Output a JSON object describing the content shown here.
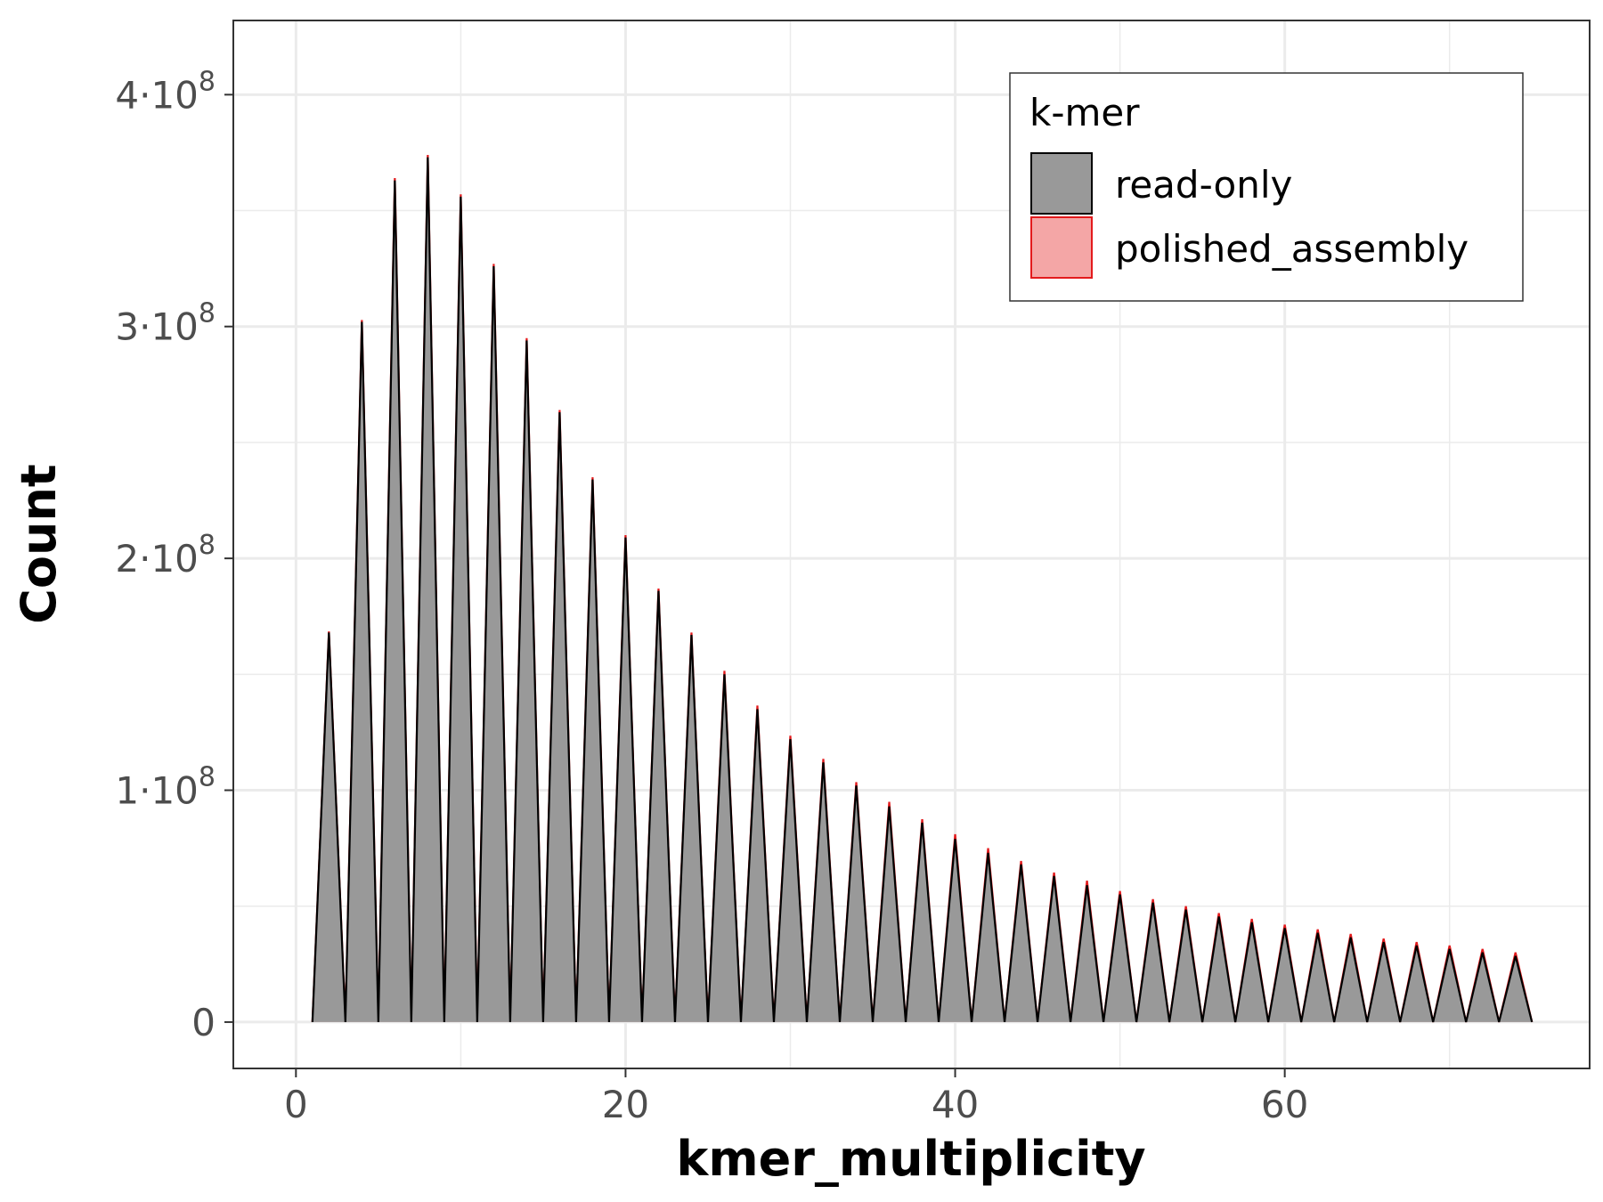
{
  "chart_data": {
    "type": "area",
    "title": "",
    "xlabel": "kmer_multiplicity",
    "ylabel": "Count",
    "xlim": [
      -3.8,
      78.5
    ],
    "ylim": [
      -20000000,
      432000000
    ],
    "x_ticks": [
      0,
      20,
      40,
      60
    ],
    "x_tick_labels": [
      "0",
      "20",
      "40",
      "60"
    ],
    "y_ticks": [
      0,
      100000000,
      200000000,
      300000000,
      400000000
    ],
    "y_tick_labels": [
      {
        "base": "0",
        "exp": ""
      },
      {
        "base": "1·10",
        "exp": "8"
      },
      {
        "base": "2·10",
        "exp": "8"
      },
      {
        "base": "3·10",
        "exp": "8"
      },
      {
        "base": "4·10",
        "exp": "8"
      }
    ],
    "grid": true,
    "legend": {
      "title": "k-mer",
      "position": "top-right",
      "entries": [
        {
          "name": "read-only",
          "fill": "#999999",
          "stroke": "#000000"
        },
        {
          "name": "polished_assembly",
          "fill": "#f4a6a6",
          "stroke": "#e31a1c"
        }
      ]
    },
    "x": [
      1,
      2,
      3,
      4,
      5,
      6,
      7,
      8,
      9,
      10,
      11,
      12,
      13,
      14,
      15,
      16,
      17,
      18,
      19,
      20,
      21,
      22,
      23,
      24,
      25,
      26,
      27,
      28,
      29,
      30,
      31,
      32,
      33,
      34,
      35,
      36,
      37,
      38,
      39,
      40,
      41,
      42,
      43,
      44,
      45,
      46,
      47,
      48,
      49,
      50,
      51,
      52,
      53,
      54,
      55,
      56,
      57,
      58,
      59,
      60,
      61,
      62,
      63,
      64,
      65,
      66,
      67,
      68,
      69,
      70,
      71,
      72,
      73,
      74,
      75
    ],
    "series": [
      {
        "name": "read-only",
        "color": "#000000",
        "fill": "#999999",
        "values": [
          0,
          168000000,
          0,
          302000000,
          0,
          363000000,
          0,
          373000000,
          0,
          356000000,
          0,
          326000000,
          0,
          294000000,
          0,
          263000000,
          0,
          234000000,
          0,
          209000000,
          0,
          186000000,
          0,
          167000000,
          0,
          150000000,
          0,
          135000000,
          0,
          122000000,
          0,
          112000000,
          0,
          102000000,
          0,
          93000000,
          0,
          86000000,
          0,
          79000000,
          0,
          73000000,
          0,
          68000000,
          0,
          63000000,
          0,
          59000000,
          0,
          55000000,
          0,
          51500000,
          0,
          48500000,
          0,
          45500000,
          0,
          43000000,
          0,
          40500000,
          0,
          38500000,
          0,
          36500000,
          0,
          34500000,
          0,
          33000000,
          0,
          31500000,
          0,
          30000000,
          0,
          28500000,
          0
        ]
      },
      {
        "name": "polished_assembly",
        "color": "#e31a1c",
        "fill": "#f4a6a6",
        "values": [
          0,
          168500000,
          0,
          302800000,
          0,
          364000000,
          0,
          374000000,
          0,
          357000000,
          0,
          327000000,
          0,
          295000000,
          0,
          264000000,
          0,
          235000000,
          0,
          210000000,
          0,
          187000000,
          0,
          168000000,
          0,
          151500000,
          0,
          136500000,
          0,
          123500000,
          0,
          113500000,
          0,
          103500000,
          0,
          95000000,
          0,
          87500000,
          0,
          81000000,
          0,
          75000000,
          0,
          69500000,
          0,
          64500000,
          0,
          61000000,
          0,
          56500000,
          0,
          53000000,
          0,
          50000000,
          0,
          47000000,
          0,
          44500000,
          0,
          42000000,
          0,
          40000000,
          0,
          38000000,
          0,
          36000000,
          0,
          34500000,
          0,
          33000000,
          0,
          31500000,
          0,
          30000000,
          0
        ]
      }
    ]
  }
}
